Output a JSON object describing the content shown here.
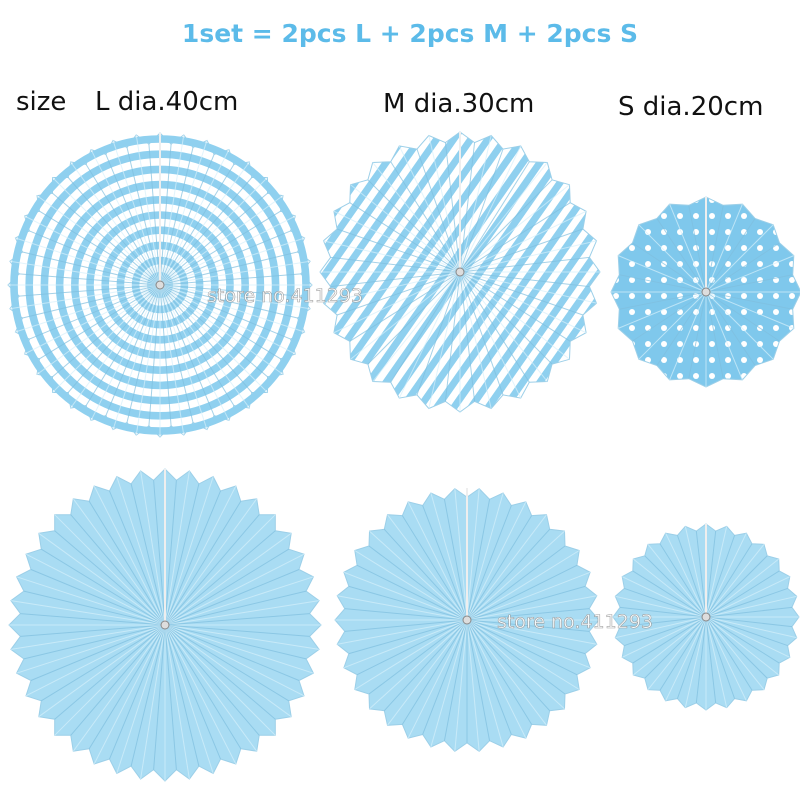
{
  "header": {
    "title": "1set = 2pcs L + 2pcs M + 2pcs S"
  },
  "sizes": {
    "label": "size",
    "large": "L dia.40cm",
    "medium": "M dia.30cm",
    "small": "S dia.20cm"
  },
  "watermarks": [
    "store no.411293",
    "store no.411293"
  ]
}
